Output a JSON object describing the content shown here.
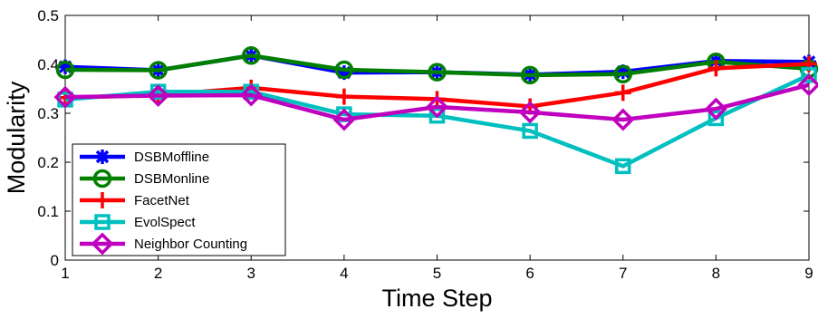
{
  "chart_data": {
    "type": "line",
    "title": "",
    "xlabel": "Time Step",
    "ylabel": "Modularity",
    "x": [
      1,
      2,
      3,
      4,
      5,
      6,
      7,
      8,
      9
    ],
    "xlim": [
      1,
      9
    ],
    "ylim": [
      0,
      0.5
    ],
    "xticks": [
      "1",
      "2",
      "3",
      "4",
      "5",
      "6",
      "7",
      "8",
      "9"
    ],
    "yticks": [
      "0",
      "0.1",
      "0.2",
      "0.3",
      "0.4",
      "0.5"
    ],
    "grid": false,
    "legend_position": "bottom-left",
    "series": [
      {
        "name": "DSBMoffline",
        "color": "#0000ff",
        "marker": "asterisk",
        "values": [
          0.395,
          0.388,
          0.418,
          0.383,
          0.384,
          0.379,
          0.385,
          0.407,
          0.405
        ]
      },
      {
        "name": "DSBMonline",
        "color": "#007f00",
        "marker": "circle",
        "values": [
          0.389,
          0.388,
          0.418,
          0.389,
          0.384,
          0.378,
          0.38,
          0.405,
          0.391
        ]
      },
      {
        "name": "FacetNet",
        "color": "#ff0000",
        "marker": "plus",
        "values": [
          0.332,
          0.337,
          0.352,
          0.334,
          0.329,
          0.314,
          0.342,
          0.392,
          0.401
        ]
      },
      {
        "name": "EvolSpect",
        "color": "#00bfbf",
        "marker": "square",
        "values": [
          0.328,
          0.344,
          0.344,
          0.298,
          0.295,
          0.264,
          0.192,
          0.29,
          0.378
        ]
      },
      {
        "name": "Neighbor Counting",
        "color": "#bf00bf",
        "marker": "diamond",
        "values": [
          0.333,
          0.336,
          0.337,
          0.287,
          0.313,
          0.302,
          0.287,
          0.309,
          0.358
        ]
      }
    ]
  }
}
